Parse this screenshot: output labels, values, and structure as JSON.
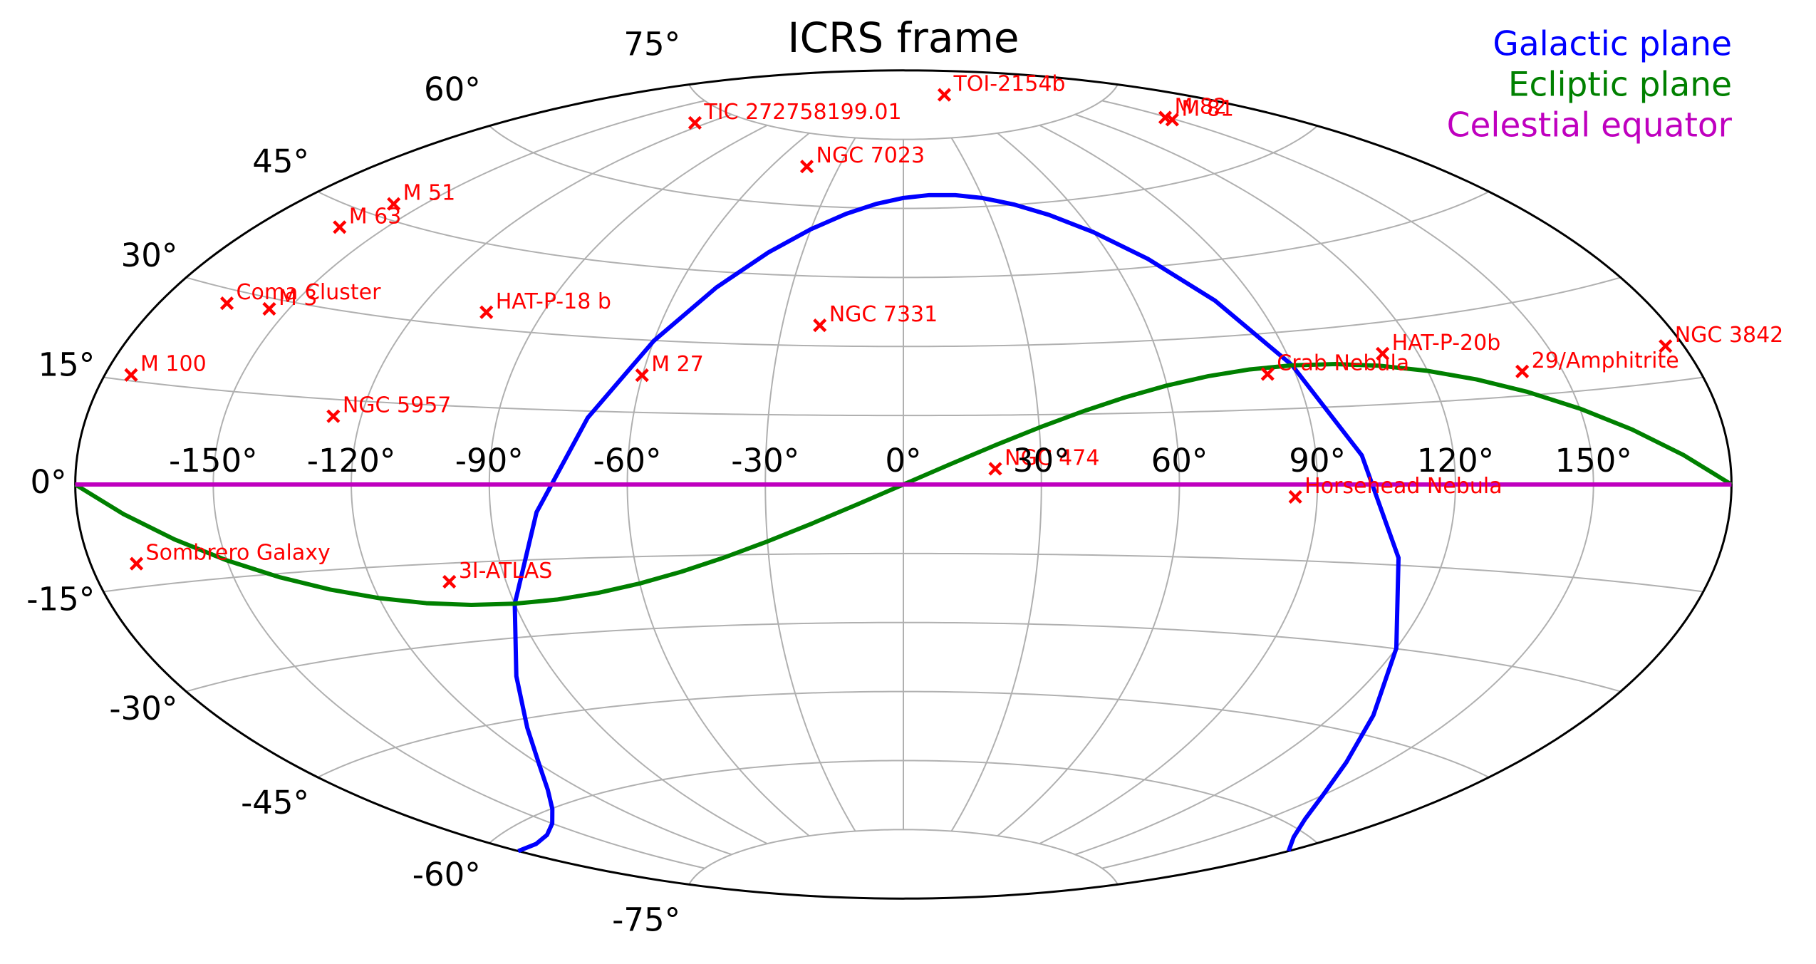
{
  "chart_data": {
    "type": "scatter",
    "projection": "aitoff",
    "title": "ICRS frame",
    "xlim": [
      -180,
      180
    ],
    "ylim": [
      -90,
      90
    ],
    "xticks": [
      {
        "value": -150,
        "label": "-150°"
      },
      {
        "value": -120,
        "label": "-120°"
      },
      {
        "value": -90,
        "label": "-90°"
      },
      {
        "value": -60,
        "label": "-60°"
      },
      {
        "value": -30,
        "label": "-30°"
      },
      {
        "value": 0,
        "label": "0°"
      },
      {
        "value": 30,
        "label": "30°"
      },
      {
        "value": 60,
        "label": "60°"
      },
      {
        "value": 90,
        "label": "90°"
      },
      {
        "value": 120,
        "label": "120°"
      },
      {
        "value": 150,
        "label": "150°"
      }
    ],
    "yticks": [
      {
        "value": -75,
        "label": "-75°"
      },
      {
        "value": -60,
        "label": "-60°"
      },
      {
        "value": -45,
        "label": "-45°"
      },
      {
        "value": -30,
        "label": "-30°"
      },
      {
        "value": -15,
        "label": "-15°"
      },
      {
        "value": 0,
        "label": "0°"
      },
      {
        "value": 15,
        "label": "15°"
      },
      {
        "value": 30,
        "label": "30°"
      },
      {
        "value": 45,
        "label": "45°"
      },
      {
        "value": 60,
        "label": "60°"
      },
      {
        "value": 75,
        "label": "75°"
      }
    ],
    "grid": true,
    "legend": "upper right",
    "lines": [
      {
        "name": "Galactic plane",
        "color": "#0000ff",
        "x": [
          -180,
          -170,
          -160,
          -150,
          -140,
          -130,
          -120,
          -110,
          -100,
          -90,
          -80,
          -70,
          -60,
          -50,
          -40,
          -30,
          -20,
          -10,
          0,
          10,
          20,
          30,
          40,
          50,
          60,
          70,
          80,
          90,
          100,
          110,
          120,
          130,
          140,
          150,
          160,
          170,
          180
        ],
        "y": [
          -62.28,
          -62.85,
          -62.69,
          -61.8,
          -60.07,
          -57.28,
          -53.02,
          -46.64,
          -37.18,
          -23.48,
          -5.56,
          13.64,
          29.91,
          41.68,
          49.68,
          55.04,
          58.63,
          60.93,
          62.28,
          62.85,
          62.69,
          61.8,
          60.07,
          57.28,
          53.02,
          46.64,
          37.18,
          23.48,
          5.56,
          -13.64,
          -29.91,
          -41.68,
          -49.68,
          -55.04,
          -58.63,
          -60.93,
          -62.28
        ]
      },
      {
        "name": "Ecliptic plane",
        "color": "#008000",
        "x": [
          -180,
          -170,
          -160,
          -150,
          -140,
          -130,
          -120,
          -110,
          -100,
          -90,
          -80,
          -70,
          -60,
          -50,
          -40,
          -30,
          -20,
          -10,
          0,
          10,
          20,
          30,
          40,
          50,
          60,
          70,
          80,
          90,
          100,
          110,
          120,
          130,
          140,
          150,
          160,
          170,
          180
        ],
        "y": [
          0,
          -4.31,
          -8.44,
          -12.23,
          -15.57,
          -18.37,
          -20.58,
          -22.17,
          -23.12,
          -23.44,
          -23.12,
          -22.17,
          -20.58,
          -18.37,
          -15.57,
          -12.23,
          -8.44,
          -4.31,
          0,
          4.31,
          8.44,
          12.23,
          15.57,
          18.37,
          20.58,
          22.17,
          23.12,
          23.44,
          23.12,
          22.17,
          20.58,
          18.37,
          15.57,
          12.23,
          8.44,
          4.31,
          0
        ]
      },
      {
        "name": "Celestial equator",
        "color": "#bf00bf",
        "x": [
          -180,
          180
        ],
        "y": [
          0,
          0
        ]
      }
    ],
    "points": {
      "color": "#ff0000",
      "marker": "x",
      "names": [
        "TOI-2154b",
        "M 82",
        "M 81",
        "TIC 272758199.01",
        "NGC 7023",
        "M 51",
        "M 63",
        "Coma Cluster",
        "M 3",
        "HAT-P-18 b",
        "NGC 7331",
        "M 27",
        "M 100",
        "NGC 5957",
        "Sombrero Galaxy",
        "3I-ATLAS",
        "NGC 474",
        "Horsehead Nebula",
        "Crab Nebula",
        "HAT-P-20b",
        "29/Amphitrite",
        "NGC 3842"
      ],
      "x": [
        60,
        148.97,
        148.89,
        -125,
        -44.6,
        -157.5,
        -161.0,
        -165.05,
        -154.45,
        -103.65,
        -20.73,
        -60.1,
        -174.27,
        -126.13,
        -170.0,
        -102.7,
        20.0,
        85.25,
        83.63,
        111.92,
        141,
        176.0
      ],
      "y": [
        84,
        69.68,
        69.07,
        72,
        68.2,
        47.2,
        42.0,
        27.98,
        28.38,
        33.0,
        34.42,
        22.72,
        15.82,
        12.05,
        -11.62,
        -18.5,
        3.4,
        -2.46,
        22.01,
        24.34,
        19,
        19.95
      ]
    }
  }
}
